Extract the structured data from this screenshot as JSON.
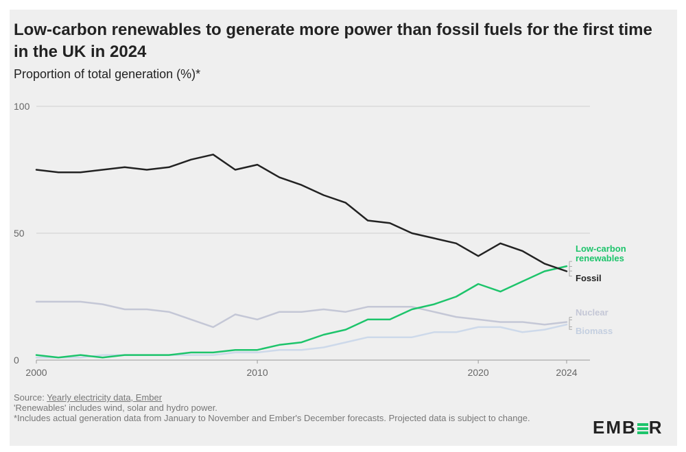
{
  "title": "Low-carbon renewables to generate more power than fossil fuels for the first time in the UK in 2024",
  "subtitle": "Proportion of total generation (%)*",
  "footer": {
    "source_prefix": "Source: ",
    "source_link": "Yearly electricity data, Ember",
    "note1": "'Renewables' includes wind, solar and hydro power.",
    "note2": "*Includes actual generation data from January to November and Ember's December forecasts. Projected data is subject to change."
  },
  "logo": {
    "left": "EMB",
    "right": "R",
    "bar_colors": [
      "#1dc46b",
      "#1dc46b",
      "#1dc46b"
    ]
  },
  "chart_data": {
    "type": "line",
    "title": "Low-carbon renewables to generate more power than fossil fuels for the first time in the UK in 2024",
    "ylabel": "Proportion of total generation (%)*",
    "xlabel": "",
    "xlim": [
      2000,
      2024
    ],
    "ylim": [
      0,
      100
    ],
    "x_ticks": [
      2000,
      2010,
      2020,
      2024
    ],
    "y_ticks": [
      0,
      50,
      100
    ],
    "grid": true,
    "x": [
      2000,
      2001,
      2002,
      2003,
      2004,
      2005,
      2006,
      2007,
      2008,
      2009,
      2010,
      2011,
      2012,
      2013,
      2014,
      2015,
      2016,
      2017,
      2018,
      2019,
      2020,
      2021,
      2022,
      2023,
      2024
    ],
    "series": [
      {
        "name": "Fossil",
        "color": "#222222",
        "values": [
          75,
          74,
          74,
          75,
          76,
          75,
          76,
          79,
          81,
          75,
          77,
          72,
          69,
          65,
          62,
          55,
          54,
          50,
          48,
          46,
          41,
          46,
          43,
          38,
          35
        ]
      },
      {
        "name": "Low-carbon renewables",
        "color": "#1dc46b",
        "values": [
          2,
          1,
          2,
          1,
          2,
          2,
          2,
          3,
          3,
          4,
          4,
          6,
          7,
          10,
          12,
          16,
          16,
          20,
          22,
          25,
          30,
          27,
          31,
          35,
          37
        ]
      },
      {
        "name": "Nuclear",
        "color": "#c4c7d6",
        "values": [
          23,
          23,
          23,
          22,
          20,
          20,
          19,
          16,
          13,
          18,
          16,
          19,
          19,
          20,
          19,
          21,
          21,
          21,
          19,
          17,
          16,
          15,
          15,
          14,
          15
        ]
      },
      {
        "name": "Biomass",
        "color": "#cdd9ea",
        "values": [
          1,
          1,
          1,
          2,
          2,
          2,
          2,
          2,
          2,
          3,
          3,
          4,
          4,
          5,
          7,
          9,
          9,
          9,
          11,
          11,
          13,
          13,
          11,
          12,
          14
        ]
      }
    ],
    "labels": [
      {
        "series": "Low-carbon renewables",
        "lines": [
          "Low-carbon",
          "renewables"
        ]
      },
      {
        "series": "Fossil",
        "lines": [
          "Fossil"
        ]
      },
      {
        "series": "Nuclear",
        "lines": [
          "Nuclear"
        ]
      },
      {
        "series": "Biomass",
        "lines": [
          "Biomass"
        ]
      }
    ]
  }
}
